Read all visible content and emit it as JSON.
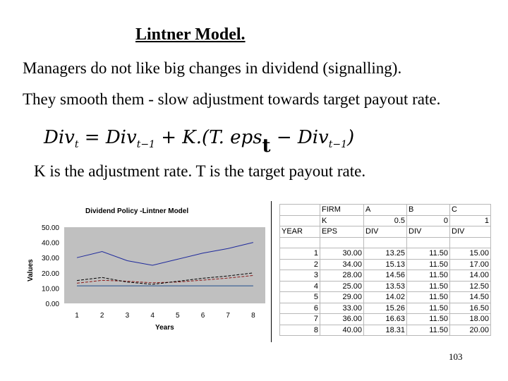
{
  "slide": {
    "title": "Lintner Model.",
    "line1": "Managers do not like big changes in dividend (signalling).",
    "line2": "They smooth them - slow adjustment towards target payout rate.",
    "equation": {
      "lhs": "Div",
      "lhs_sub": "t",
      "rhs1": "Div",
      "rhs1_sub": "t−1",
      "k_part": "K.(T. eps",
      "t_part": "t",
      "minus": "−",
      "rhs2": "Div",
      "rhs2_sub": "t−1",
      "close": ")"
    },
    "k_line": "K is the adjustment rate. T is the target payout rate.",
    "page_number": "103"
  },
  "chart_data": {
    "type": "line",
    "title": "Dividend Policy -Lintner Model",
    "xlabel": "Years",
    "ylabel": "Values",
    "x": [
      1,
      2,
      3,
      4,
      5,
      6,
      7,
      8
    ],
    "ylim": [
      0,
      50
    ],
    "yticks": [
      "0.00",
      "10.00",
      "20.00",
      "30.00",
      "40.00",
      "50.00"
    ],
    "plot_background": "#c0c0c0",
    "series": [
      {
        "values": [
          30,
          34,
          28,
          25,
          29,
          33,
          36,
          40
        ],
        "color": "#1f2a9c",
        "dash": "solid"
      },
      {
        "values": [
          13.25,
          15.13,
          14.56,
          13.53,
          14.02,
          15.26,
          16.63,
          18.31
        ],
        "color": "#8b1a1a",
        "dash": "dashed"
      },
      {
        "values": [
          11.5,
          11.5,
          11.5,
          11.5,
          11.5,
          11.5,
          11.5,
          11.5
        ],
        "color": "#1f4e8c",
        "dash": "solid"
      },
      {
        "values": [
          15,
          17,
          14,
          12.5,
          14.5,
          16.5,
          18,
          20
        ],
        "color": "#000000",
        "dash": "dashed"
      }
    ]
  },
  "table": {
    "rows": [
      [
        "",
        "FIRM",
        "A",
        "B",
        "C"
      ],
      [
        "",
        "K",
        "0.5",
        "0",
        "1"
      ],
      [
        "YEAR",
        "EPS",
        "DIV",
        "DIV",
        "DIV"
      ],
      [
        "",
        "",
        "",
        "",
        ""
      ],
      [
        "1",
        "30.00",
        "13.25",
        "11.50",
        "15.00"
      ],
      [
        "2",
        "34.00",
        "15.13",
        "11.50",
        "17.00"
      ],
      [
        "3",
        "28.00",
        "14.56",
        "11.50",
        "14.00"
      ],
      [
        "4",
        "25.00",
        "13.53",
        "11.50",
        "12.50"
      ],
      [
        "5",
        "29.00",
        "14.02",
        "11.50",
        "14.50"
      ],
      [
        "6",
        "33.00",
        "15.26",
        "11.50",
        "16.50"
      ],
      [
        "7",
        "36.00",
        "16.63",
        "11.50",
        "18.00"
      ],
      [
        "8",
        "40.00",
        "18.31",
        "11.50",
        "20.00"
      ]
    ]
  }
}
